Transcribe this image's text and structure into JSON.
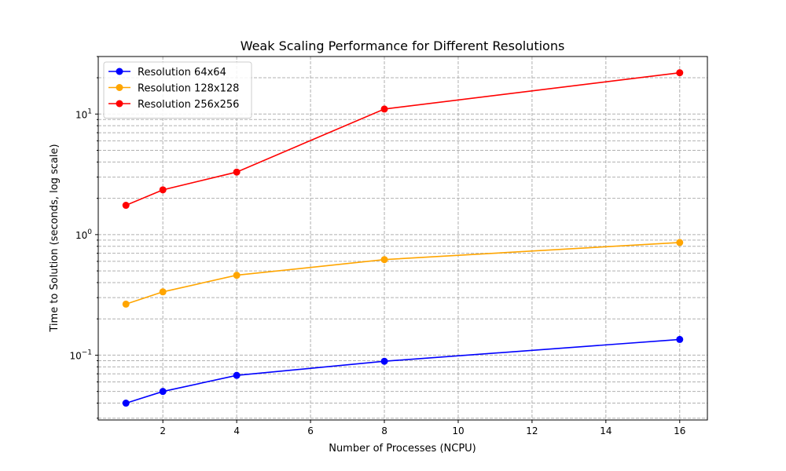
{
  "chart_data": {
    "type": "line",
    "title": "Weak Scaling Performance for Different Resolutions",
    "xlabel": "Number of Processes (NCPU)",
    "ylabel": "Time to Solution (seconds, log scale)",
    "x": [
      1,
      2,
      4,
      8,
      16
    ],
    "xlim": [
      0.25,
      16.75
    ],
    "xticks": [
      2,
      4,
      6,
      8,
      10,
      12,
      14,
      16
    ],
    "y_scale": "log",
    "ylim": [
      0.029,
      30
    ],
    "yticks": [
      {
        "value": 0.1,
        "base": "10",
        "exp": "−1"
      },
      {
        "value": 1,
        "base": "10",
        "exp": "0"
      },
      {
        "value": 10,
        "base": "10",
        "exp": "1"
      }
    ],
    "grid": true,
    "grid_minor": true,
    "legend_position": "top-left",
    "series": [
      {
        "name": "Resolution 64x64",
        "color": "#0000ff",
        "values": [
          0.04,
          0.05,
          0.068,
          0.089,
          0.135
        ]
      },
      {
        "name": "Resolution 128x128",
        "color": "#ffa500",
        "values": [
          0.265,
          0.335,
          0.46,
          0.62,
          0.86
        ]
      },
      {
        "name": "Resolution 256x256",
        "color": "#ff0000",
        "values": [
          1.75,
          2.35,
          3.3,
          11.0,
          22.0
        ]
      }
    ]
  }
}
